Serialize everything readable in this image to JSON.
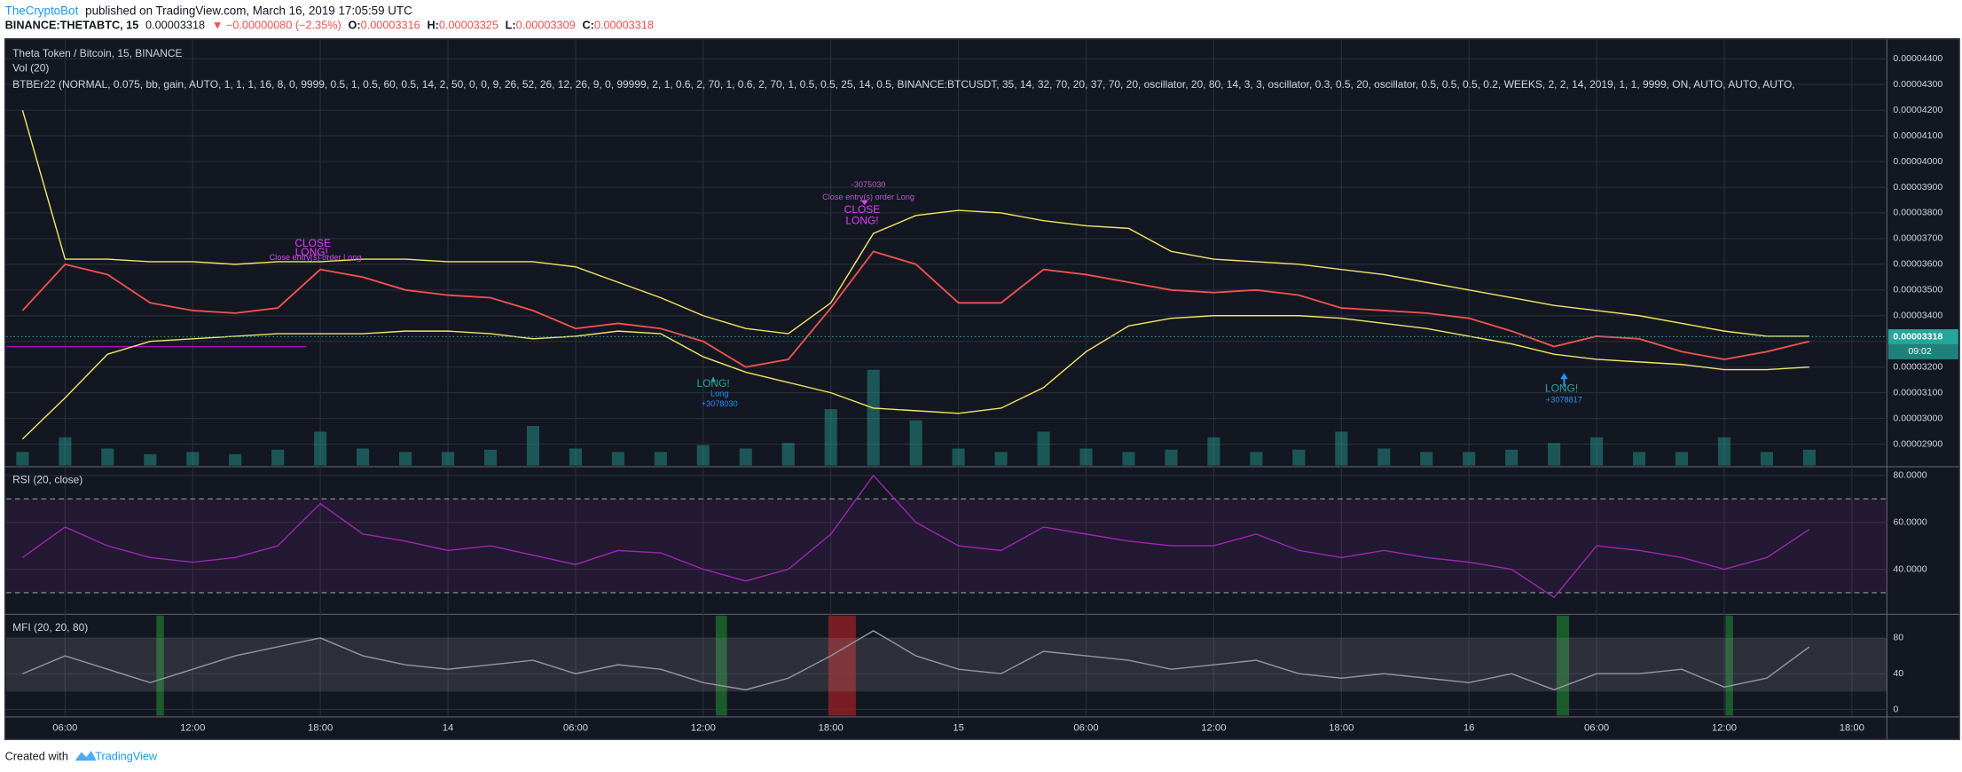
{
  "header": {
    "author": "TheCryptoBot",
    "published": "published on TradingView.com, March 16, 2019 17:05:59 UTC",
    "symbol": "BINANCE:THETABTC, 15",
    "last": "0.00003318",
    "change": "▼ −0.00000080 (−2.35%)",
    "ohlc": [
      {
        "label": "O:",
        "value": "0.00003316"
      },
      {
        "label": "H:",
        "value": "0.00003325"
      },
      {
        "label": "L:",
        "value": "0.00003309"
      },
      {
        "label": "C:",
        "value": "0.00003318"
      }
    ]
  },
  "chart_data": [
    {
      "type": "line",
      "title": "Theta Token / Bitcoin, 15, BINANCE",
      "study": "BTBEr22 (NORMAL, 0.075,  bb,  gain, AUTO, 1, 1, 1, 16, 8, 0, 9999, 0.5, 1, 0.5, 60, 0.5, 14, 2, 50, 0, 0, 9, 26, 52, 26, 12, 26, 9, 0, 99999, 2, 1, 0.6, 2, 70, 1, 0.6, 2, 70, 1, 0.5, 0.5, 25, 14, 0.5, BINANCE:BTCUSDT, 35, 14, 32, 70, 20, 37, 70, 20, oscillator, 20, 80, 14, 3, 3, oscillator, 0.3, 0.5, 20, oscillator, 0.5, 0.5, 0.5, 0.2, WEEKS, 2, 2, 14, 2019, 1, 1, 9999, ON, AUTO, AUTO, AUTO,",
      "categories": [
        null,
        "06:00",
        null,
        null,
        "12:00",
        null,
        null,
        "18:00",
        null,
        null,
        "14",
        null,
        null,
        "06:00",
        null,
        null,
        "12:00",
        null,
        null,
        "18:00",
        null,
        null,
        "15",
        null,
        null,
        "06:00",
        null,
        null,
        "12:00",
        null,
        null,
        "18:00",
        null,
        null,
        "16",
        null,
        null,
        "06:00",
        null,
        null,
        "12:00",
        null,
        null,
        "18:00"
      ],
      "series": [
        {
          "color": "#f5e663",
          "values": [
            4.2e-05,
            3.62e-05,
            3.62e-05,
            3.61e-05,
            3.61e-05,
            3.6e-05,
            3.61e-05,
            3.61e-05,
            3.62e-05,
            3.62e-05,
            3.61e-05,
            3.61e-05,
            3.61e-05,
            3.59e-05,
            3.53e-05,
            3.47e-05,
            3.4e-05,
            3.35e-05,
            3.33e-05,
            3.45e-05,
            3.72e-05,
            3.79e-05,
            3.81e-05,
            3.8e-05,
            3.77e-05,
            3.75e-05,
            3.74e-05,
            3.65e-05,
            3.62e-05,
            3.61e-05,
            3.6e-05,
            3.58e-05,
            3.56e-05,
            3.53e-05,
            3.5e-05,
            3.47e-05,
            3.44e-05,
            3.42e-05,
            3.4e-05,
            3.37e-05,
            3.34e-05,
            3.32e-05,
            3.32e-05,
            null
          ]
        },
        {
          "color": "#f5e663",
          "values": [
            2.92e-05,
            3.08e-05,
            3.25e-05,
            3.3e-05,
            3.31e-05,
            3.32e-05,
            3.33e-05,
            3.33e-05,
            3.33e-05,
            3.34e-05,
            3.34e-05,
            3.33e-05,
            3.31e-05,
            3.32e-05,
            3.34e-05,
            3.33e-05,
            3.24e-05,
            3.18e-05,
            3.14e-05,
            3.1e-05,
            3.04e-05,
            3.03e-05,
            3.02e-05,
            3.04e-05,
            3.12e-05,
            3.26e-05,
            3.36e-05,
            3.39e-05,
            3.4e-05,
            3.4e-05,
            3.4e-05,
            3.39e-05,
            3.37e-05,
            3.35e-05,
            3.32e-05,
            3.29e-05,
            3.25e-05,
            3.23e-05,
            3.22e-05,
            3.21e-05,
            3.19e-05,
            3.19e-05,
            3.2e-05,
            null
          ]
        },
        {
          "color": "#ef5350",
          "values": [
            3.42e-05,
            3.6e-05,
            3.56e-05,
            3.45e-05,
            3.42e-05,
            3.41e-05,
            3.43e-05,
            3.58e-05,
            3.55e-05,
            3.5e-05,
            3.48e-05,
            3.47e-05,
            3.42e-05,
            3.35e-05,
            3.37e-05,
            3.35e-05,
            3.3e-05,
            3.2e-05,
            3.23e-05,
            3.43e-05,
            3.65e-05,
            3.6e-05,
            3.45e-05,
            3.45e-05,
            3.58e-05,
            3.56e-05,
            3.53e-05,
            3.5e-05,
            3.49e-05,
            3.5e-05,
            3.48e-05,
            3.43e-05,
            3.42e-05,
            3.41e-05,
            3.39e-05,
            3.34e-05,
            3.28e-05,
            3.32e-05,
            3.31e-05,
            3.26e-05,
            3.23e-05,
            3.26e-05,
            3.3e-05,
            null
          ]
        }
      ],
      "volume": {
        "name": "Vol (20)",
        "color": "#26a69a",
        "ylim": [
          0,
          100
        ],
        "values": [
          12,
          25,
          15,
          10,
          12,
          10,
          14,
          30,
          15,
          12,
          12,
          14,
          35,
          15,
          12,
          12,
          18,
          15,
          20,
          50,
          85,
          40,
          15,
          12,
          30,
          15,
          12,
          14,
          25,
          12,
          14,
          30,
          15,
          12,
          12,
          14,
          20,
          25,
          12,
          12,
          25,
          12,
          14,
          null
        ]
      },
      "ylim": [
        2.817e-05,
        4.473e-05
      ],
      "yticks": [
        {
          "value": 2.9e-05,
          "label": "0.00002900"
        },
        {
          "value": 3e-05,
          "label": "0.00003000"
        },
        {
          "value": 3.1e-05,
          "label": "0.00003100"
        },
        {
          "value": 3.2e-05,
          "label": "0.00003200"
        },
        {
          "value": 3.3e-05,
          "label": "0.00003300"
        },
        {
          "value": 3.4e-05,
          "label": "0.00003400"
        },
        {
          "value": 3.5e-05,
          "label": "0.00003500"
        },
        {
          "value": 3.6e-05,
          "label": "0.00003600"
        },
        {
          "value": 3.7e-05,
          "label": "0.00003700"
        },
        {
          "value": 3.8e-05,
          "label": "0.00003800"
        },
        {
          "value": 3.9e-05,
          "label": "0.00003900"
        },
        {
          "value": 4e-05,
          "label": "0.00004000"
        },
        {
          "value": 4.1e-05,
          "label": "0.00004100"
        },
        {
          "value": 4.2e-05,
          "label": "0.00004200"
        },
        {
          "value": 4.3e-05,
          "label": "0.00004300"
        },
        {
          "value": 4.4e-05,
          "label": "0.00004400"
        }
      ],
      "last_price": {
        "value": 3.318e-05,
        "label": "0.00003318",
        "color": "#26a69a"
      },
      "countdown": "09:02",
      "grid": true,
      "annotations": [
        {
          "text": "LONG!",
          "color": "#26a69a"
        },
        {
          "text": "Long",
          "color": "#2196f3"
        },
        {
          "text": "+3078030",
          "color": "#2196f3"
        },
        {
          "text": "-3075030",
          "color": "#b45cc8"
        },
        {
          "text": "Close entry(s) order Long",
          "color": "#b45cc8"
        },
        {
          "text": "CLOSE",
          "color": "#e040fb"
        },
        {
          "text": "LONG!",
          "color": "#e040fb"
        },
        {
          "text": "CLOSE",
          "color": "#e040fb"
        },
        {
          "text": "Close entry(s) order Long",
          "color": "#e040fb"
        },
        {
          "text": "LONG!",
          "color": "#e040fb"
        },
        {
          "text": "LONG!",
          "color": "#26a69a"
        },
        {
          "text": "+3078817",
          "color": "#2196f3"
        }
      ]
    },
    {
      "type": "line",
      "title": "RSI (20, close)",
      "color": "#9c27b0",
      "values": [
        45,
        58,
        50,
        45,
        43,
        45,
        50,
        68,
        55,
        52,
        48,
        50,
        46,
        42,
        48,
        47,
        40,
        35,
        40,
        55,
        80,
        60,
        50,
        48,
        58,
        55,
        52,
        50,
        50,
        55,
        48,
        45,
        48,
        45,
        43,
        40,
        28,
        50,
        48,
        45,
        40,
        45,
        57,
        null
      ],
      "ylim": [
        21.3,
        83.2
      ],
      "yticks": [
        {
          "value": 40,
          "label": "40.0000"
        },
        {
          "value": 60,
          "label": "60.0000"
        },
        {
          "value": 80,
          "label": "80.0000"
        }
      ],
      "bands": [
        30,
        70
      ]
    },
    {
      "type": "line",
      "title": "MFI (20, 20, 80)",
      "color": "#9598a1",
      "values": [
        40,
        60,
        45,
        30,
        45,
        60,
        70,
        80,
        60,
        50,
        45,
        50,
        55,
        40,
        50,
        45,
        30,
        22,
        35,
        60,
        88,
        60,
        45,
        40,
        65,
        60,
        55,
        45,
        50,
        55,
        40,
        35,
        40,
        35,
        30,
        40,
        22,
        40,
        40,
        45,
        25,
        35,
        70,
        null
      ],
      "ylim": [
        -7,
        105
      ],
      "yticks": [
        0,
        40,
        80
      ],
      "bands": [
        20,
        80
      ]
    }
  ],
  "footer": {
    "created": "Created with",
    "brand": "TradingView"
  }
}
